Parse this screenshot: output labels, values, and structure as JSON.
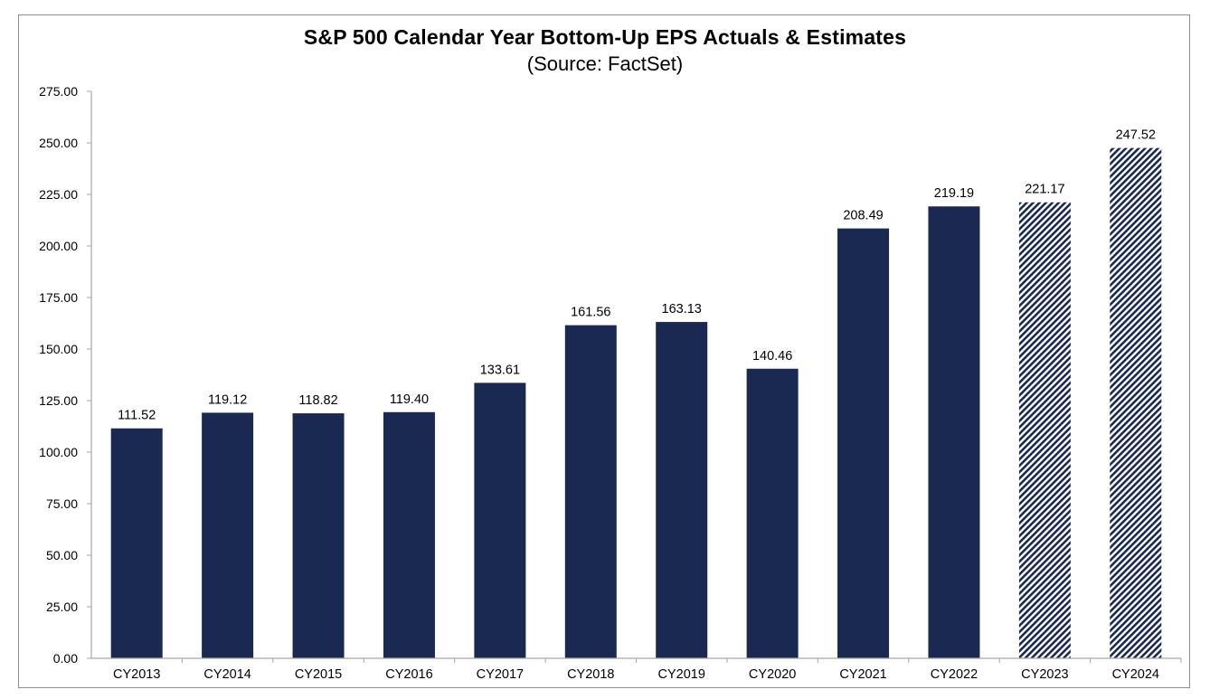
{
  "chart_data": {
    "type": "bar",
    "title": "S&P 500 Calendar Year Bottom-Up EPS Actuals & Estimates",
    "subtitle": "(Source: FactSet)",
    "categories": [
      "CY2013",
      "CY2014",
      "CY2015",
      "CY2016",
      "CY2017",
      "CY2018",
      "CY2019",
      "CY2020",
      "CY2021",
      "CY2022",
      "CY2023",
      "CY2024"
    ],
    "values": [
      111.52,
      119.12,
      118.82,
      119.4,
      133.61,
      161.56,
      163.13,
      140.46,
      208.49,
      219.19,
      221.17,
      247.52
    ],
    "value_labels": [
      "111.52",
      "119.12",
      "118.82",
      "119.40",
      "133.61",
      "161.56",
      "163.13",
      "140.46",
      "208.49",
      "219.19",
      "221.17",
      "247.52"
    ],
    "estimate": [
      false,
      false,
      false,
      false,
      false,
      false,
      false,
      false,
      false,
      false,
      true,
      true
    ],
    "ylim": [
      0,
      275
    ],
    "yticks": [
      "0.00",
      "25.00",
      "50.00",
      "75.00",
      "100.00",
      "125.00",
      "150.00",
      "175.00",
      "200.00",
      "225.00",
      "250.00",
      "275.00"
    ],
    "xlabel": "",
    "ylabel": "",
    "grid": false,
    "legend": "none",
    "colors": {
      "actual": "#1a2952",
      "estimate_stripe": "#1a2952",
      "estimate_background": "#ffffff"
    }
  }
}
